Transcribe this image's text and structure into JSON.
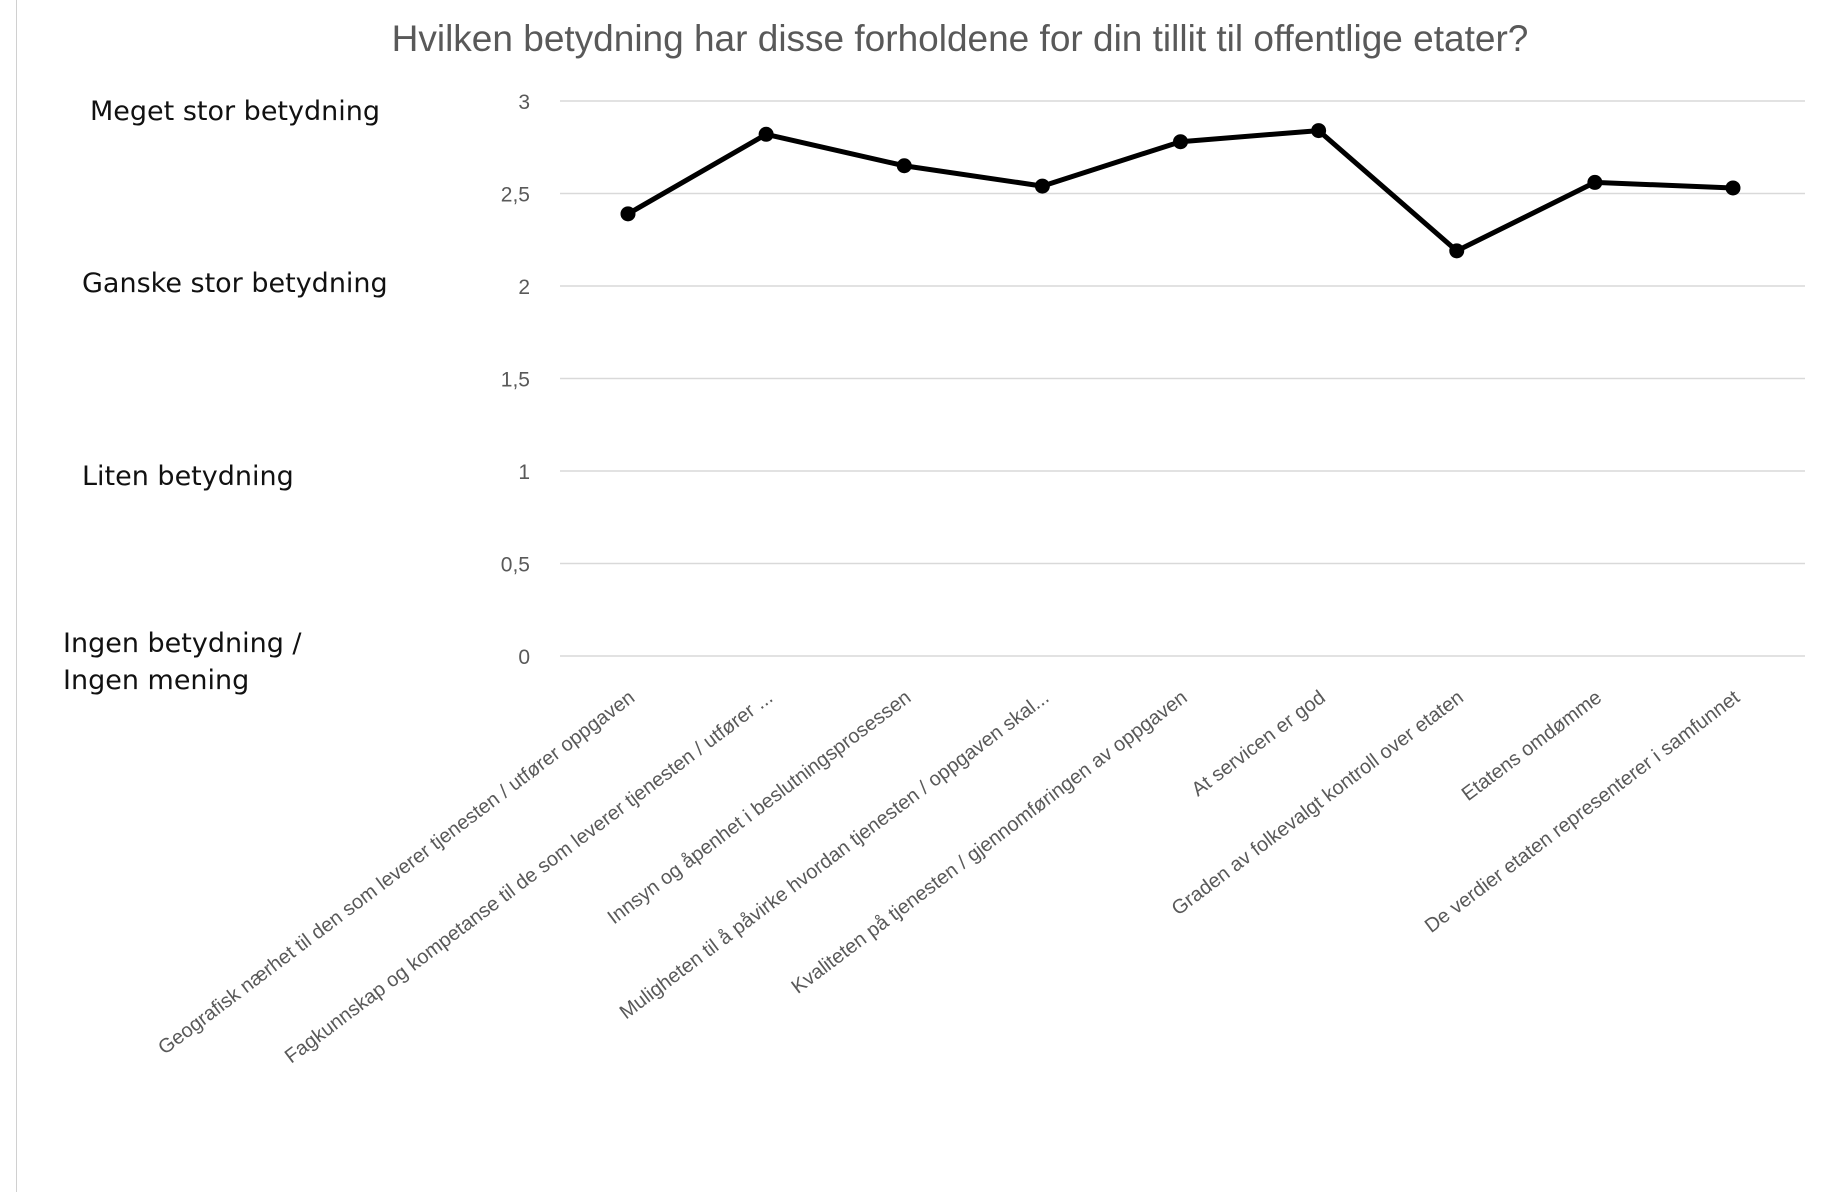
{
  "chart_data": {
    "type": "line",
    "title": "Hvilken betydning har disse forholdene for din tillit til offentlige etater?",
    "categories": [
      "Geografisk nærhet til den som leverer tjenesten / utfører oppgaven",
      "Fagkunnskap og kompetanse til de som leverer tjenesten / utfører ...",
      "Innsyn og åpenhet i beslutningsprosessen",
      "Muligheten til å påvirke hvordan tjenesten / oppgaven skal...",
      "Kvaliteten på tjenesten / gjennomføringen av oppgaven",
      "At servicen er god",
      "Graden av folkevalgt kontroll over etaten",
      "Etatens omdømme",
      "De verdier etaten representerer i samfunnet"
    ],
    "values": [
      2.39,
      2.82,
      2.65,
      2.54,
      2.78,
      2.84,
      2.19,
      2.56,
      2.53
    ],
    "ylim": [
      0,
      3
    ],
    "yticks": [
      "0",
      "0,5",
      "1",
      "1,5",
      "2",
      "2,5",
      "3"
    ],
    "ytick_values": [
      0,
      0.5,
      1,
      1.5,
      2,
      2.5,
      3
    ],
    "grid": true,
    "line_color": "#000000",
    "grid_color": "#d9d9d9",
    "side_labels": [
      {
        "text": "Meget stor betydning",
        "value": 3
      },
      {
        "text": "Ganske stor betydning",
        "value": 2
      },
      {
        "text": "Liten betydning",
        "value": 1
      },
      {
        "lines": [
          "Ingen betydning /",
          "Ingen mening"
        ],
        "value": 0
      }
    ]
  }
}
